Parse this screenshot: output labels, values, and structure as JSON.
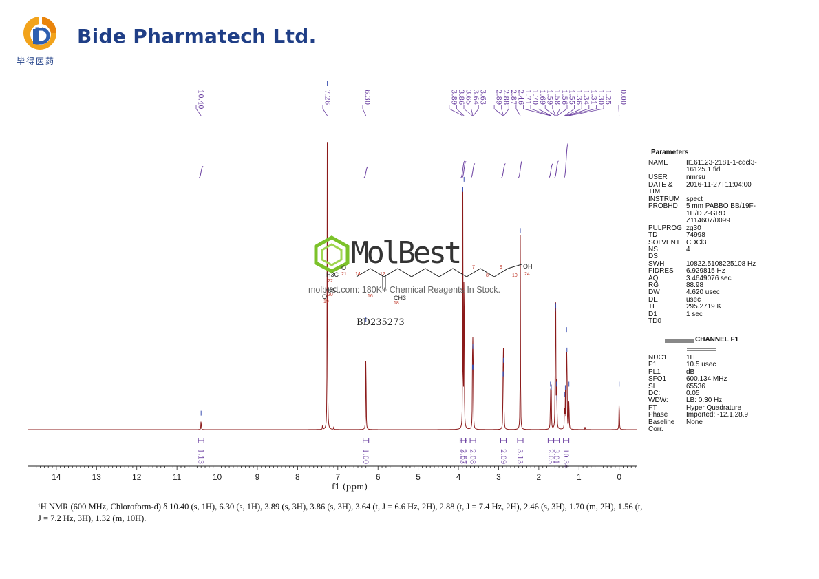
{
  "header": {
    "company_name": "Bide Pharmatech Ltd.",
    "company_name_cn": "毕得医药"
  },
  "watermark": {
    "brand": "MolBest",
    "subtitle": "molbest.com: 180K+ Chemical Reagents In Stock.",
    "compound_id": "BD235273"
  },
  "structure_labels": {
    "atoms": [
      "H3C",
      "O",
      "H3C",
      "O",
      "CH3",
      "OH"
    ],
    "numbers": [
      "21",
      "22",
      "20",
      "19",
      "14",
      "12",
      "16",
      "18",
      "7",
      "8",
      "9",
      "10",
      "24"
    ]
  },
  "chart_data": {
    "type": "line",
    "xlabel": "f1 (ppm)",
    "xlim": [
      14.7,
      -0.45
    ],
    "x_ticks": [
      14,
      13,
      12,
      11,
      10,
      9,
      8,
      7,
      6,
      5,
      4,
      3,
      2,
      1,
      0
    ],
    "peaks": [
      {
        "ppm": 10.4,
        "height": 0.035
      },
      {
        "ppm": 7.38,
        "height": 0.012
      },
      {
        "ppm": 7.26,
        "height": 1.0
      },
      {
        "ppm": 7.1,
        "height": 0.008
      },
      {
        "ppm": 6.3,
        "height": 0.31
      },
      {
        "ppm": 3.89,
        "height": 0.69
      },
      {
        "ppm": 3.86,
        "height": 0.72
      },
      {
        "ppm": 3.65,
        "height": 0.17
      },
      {
        "ppm": 3.64,
        "height": 0.23
      },
      {
        "ppm": 3.63,
        "height": 0.17
      },
      {
        "ppm": 2.89,
        "height": 0.15
      },
      {
        "ppm": 2.88,
        "height": 0.19
      },
      {
        "ppm": 2.87,
        "height": 0.15
      },
      {
        "ppm": 2.46,
        "height": 0.57
      },
      {
        "ppm": 1.71,
        "height": 0.12
      },
      {
        "ppm": 1.7,
        "height": 0.09
      },
      {
        "ppm": 1.69,
        "height": 0.11
      },
      {
        "ppm": 1.59,
        "height": 0.34
      },
      {
        "ppm": 1.58,
        "height": 0.35
      },
      {
        "ppm": 1.56,
        "height": 0.12
      },
      {
        "ppm": 1.55,
        "height": 0.08
      },
      {
        "ppm": 1.36,
        "height": 0.09
      },
      {
        "ppm": 1.34,
        "height": 0.11
      },
      {
        "ppm": 1.31,
        "height": 0.28
      },
      {
        "ppm": 1.3,
        "height": 0.22
      },
      {
        "ppm": 1.25,
        "height": 0.12
      },
      {
        "ppm": 0.85,
        "height": 0.008
      },
      {
        "ppm": 0.0,
        "height": 0.12
      }
    ],
    "peak_labels": [
      "10.40",
      "7.26",
      "6.30",
      "3.89",
      "3.86",
      "3.65",
      "3.64",
      "3.63",
      "2.89",
      "2.88",
      "2.87",
      "2.46",
      "1.71",
      "1.70",
      "1.69",
      "1.59",
      "1.58",
      "1.56",
      "1.55",
      "1.36",
      "1.34",
      "1.31",
      "1.30",
      "1.25",
      "0.00"
    ],
    "integrals": [
      {
        "ppm": 10.4,
        "value": "1.13"
      },
      {
        "ppm": 6.3,
        "value": "1.00"
      },
      {
        "ppm": 3.89,
        "value": "3.03"
      },
      {
        "ppm": 3.86,
        "value": "2.87"
      },
      {
        "ppm": 3.64,
        "value": "2.08"
      },
      {
        "ppm": 2.88,
        "value": "2.09"
      },
      {
        "ppm": 2.46,
        "value": "3.13"
      },
      {
        "ppm": 1.7,
        "value": "2.05"
      },
      {
        "ppm": 1.56,
        "value": "3.01"
      },
      {
        "ppm": 1.32,
        "value": "10.34"
      }
    ],
    "color_spectrum": "#8b1a1a",
    "color_labels": "#6a3fa0"
  },
  "parameters": {
    "title": "Parameters",
    "rows": [
      {
        "key": "NAME",
        "value": "II161123-2181-1-cdcl3-16125.1.fid"
      },
      {
        "key": "USER",
        "value": "nmrsu"
      },
      {
        "key": "DATE & TIME",
        "value": "2016-11-27T11:04:00"
      },
      {
        "key": "INSTRUM",
        "value": "spect"
      },
      {
        "key": "PROBHD",
        "value": "5 mm PABBO BB/19F-1H/D Z-GRD Z114607/0099"
      },
      {
        "key": "PULPROG",
        "value": "zg30"
      },
      {
        "key": "TD",
        "value": "74998"
      },
      {
        "key": "SOLVENT",
        "value": "CDCl3"
      },
      {
        "key": "NS",
        "value": "4"
      },
      {
        "key": "DS",
        "value": ""
      },
      {
        "key": "SWH",
        "value": "10822.5108225108 Hz"
      },
      {
        "key": "FIDRES",
        "value": "6.929815 Hz"
      },
      {
        "key": "AQ",
        "value": "3.4649076 sec"
      },
      {
        "key": "RG",
        "value": "88.98"
      },
      {
        "key": "DW",
        "value": "4.620 usec"
      },
      {
        "key": "DE",
        "value": "usec"
      },
      {
        "key": "TE",
        "value": "295.2719 K"
      },
      {
        "key": "D1",
        "value": "1 sec"
      },
      {
        "key": "TD0",
        "value": ""
      }
    ],
    "channel_title": "CHANNEL F1",
    "channel_rows": [
      {
        "key": "NUC1",
        "value": "1H"
      },
      {
        "key": "P1",
        "value": "10.5 usec"
      },
      {
        "key": "PL1",
        "value": "dB"
      },
      {
        "key": "SFO1",
        "value": "600.134 MHz"
      },
      {
        "key": "SI",
        "value": "65536"
      },
      {
        "key": "DC:",
        "value": "0.05"
      },
      {
        "key": "WDW:",
        "value": "LB: 0.30 Hz"
      },
      {
        "key": "FT:",
        "value": "Hyper Quadrature"
      },
      {
        "key": "Phase",
        "value": "Imported: -12.1,28.9"
      },
      {
        "key": "Baseline",
        "value": "None"
      },
      {
        "key": "Corr.",
        "value": ""
      }
    ]
  },
  "footer": {
    "text": "¹H NMR (600 MHz, Chloroform-d) δ 10.40 (s, 1H), 6.30 (s, 1H), 3.89 (s, 3H), 3.86 (s, 3H), 3.64 (t, J = 6.6 Hz, 2H), 2.88 (t, J = 7.4 Hz, 2H), 2.46 (s, 3H), 1.70 (m, 2H), 1.56 (t, J = 7.2 Hz, 3H), 1.32 (m, 10H)."
  }
}
